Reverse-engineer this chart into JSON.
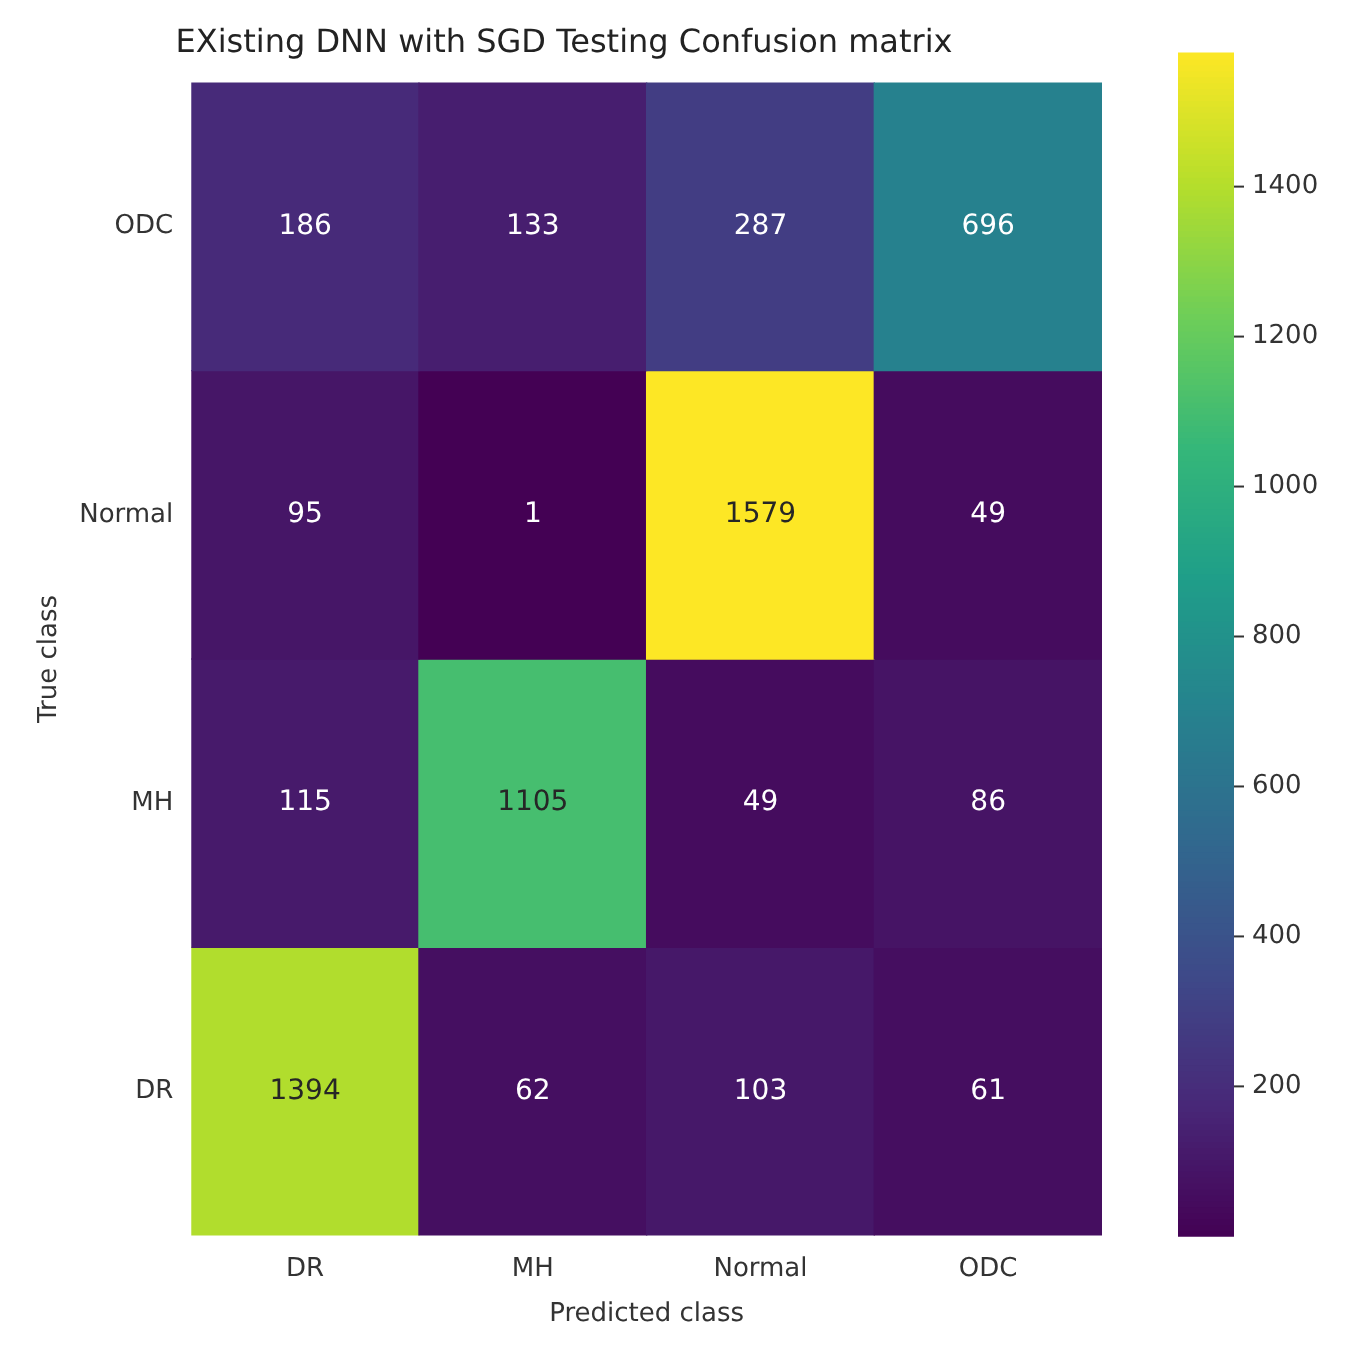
{
  "chart_data": {
    "type": "heatmap",
    "title": "EXisting DNN with SGD Testing Confusion matrix",
    "xlabel": "Predicted class",
    "ylabel": "True class",
    "categories": [
      "DR",
      "MH",
      "Normal",
      "ODC"
    ],
    "y_categories": [
      "ODC",
      "Normal",
      "MH",
      "DR"
    ],
    "cells": [
      [
        186,
        133,
        287,
        696
      ],
      [
        95,
        1,
        1579,
        49
      ],
      [
        115,
        1105,
        49,
        86
      ],
      [
        1394,
        62,
        103,
        61
      ]
    ],
    "data_labels": true,
    "clim": [
      1,
      1579
    ],
    "cticks": [
      200,
      400,
      600,
      800,
      1000,
      1200,
      1400
    ],
    "grid": false,
    "legend": false
  }
}
